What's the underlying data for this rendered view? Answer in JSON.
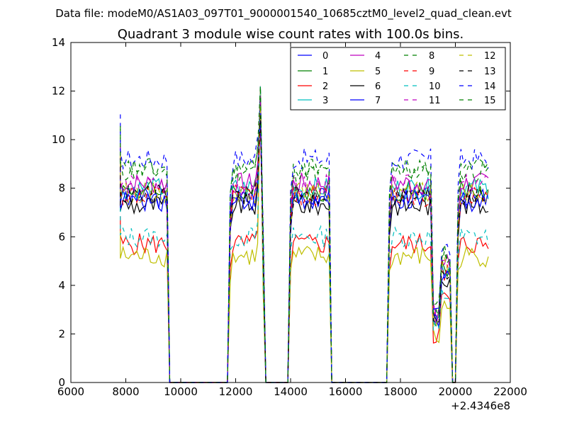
{
  "header": {
    "subtitle": "Data file: modeM0/AS1A03_097T01_9000001540_10685cztM0_level2_quad_clean.evt"
  },
  "chart_data": {
    "type": "line",
    "title": "Quadrant 3 module wise count rates with 100.0s bins.",
    "xlabel": "",
    "ylabel": "",
    "xlim": [
      6000,
      22000
    ],
    "ylim": [
      0,
      14
    ],
    "x_offset_label": "+2.4346e8",
    "x_ticks": [
      "6000",
      "8000",
      "10000",
      "12000",
      "14000",
      "16000",
      "18000",
      "20000",
      "22000"
    ],
    "y_ticks": [
      "0",
      "2",
      "4",
      "6",
      "8",
      "10",
      "12",
      "14"
    ],
    "grid": false,
    "legend_position": "top-right",
    "series": [
      {
        "name": "0",
        "color": "#0000ff",
        "style": "solid",
        "level": 7.6
      },
      {
        "name": "1",
        "color": "#008000",
        "style": "solid",
        "level": 7.9
      },
      {
        "name": "2",
        "color": "#ff0000",
        "style": "solid",
        "level": 5.7
      },
      {
        "name": "3",
        "color": "#00bfbf",
        "style": "solid",
        "level": 8.0
      },
      {
        "name": "4",
        "color": "#bf00bf",
        "style": "solid",
        "level": 8.2
      },
      {
        "name": "5",
        "color": "#bfbf00",
        "style": "solid",
        "level": 5.2
      },
      {
        "name": "6",
        "color": "#000000",
        "style": "solid",
        "level": 7.3
      },
      {
        "name": "7",
        "color": "#0000ff",
        "style": "solid",
        "level": 7.5
      },
      {
        "name": "8",
        "color": "#008000",
        "style": "dashed",
        "level": 8.7
      },
      {
        "name": "9",
        "color": "#ff0000",
        "style": "dashed",
        "level": 7.7
      },
      {
        "name": "10",
        "color": "#00bfbf",
        "style": "dashed",
        "level": 6.0
      },
      {
        "name": "11",
        "color": "#bf00bf",
        "style": "dashed",
        "level": 8.1
      },
      {
        "name": "12",
        "color": "#bfbf00",
        "style": "dashed",
        "level": 7.8
      },
      {
        "name": "13",
        "color": "#000000",
        "style": "dashed",
        "level": 7.7
      },
      {
        "name": "14",
        "color": "#0000ff",
        "style": "dashed",
        "level": 9.2
      },
      {
        "name": "15",
        "color": "#008000",
        "style": "dashed",
        "level": 8.8
      }
    ],
    "segments": [
      {
        "x_start": 7800,
        "x_end": 9500,
        "scale": 1.0
      },
      {
        "x_start": 11800,
        "x_end": 12700,
        "scale": 1.0
      },
      {
        "x_start": 14000,
        "x_end": 15400,
        "scale": 1.0
      },
      {
        "x_start": 17600,
        "x_end": 19100,
        "scale": 1.0
      },
      {
        "x_start": 19200,
        "x_end": 19400,
        "scale": 0.35
      },
      {
        "x_start": 19500,
        "x_end": 19800,
        "scale": 0.6
      },
      {
        "x_start": 20100,
        "x_end": 21200,
        "scale": 1.0
      }
    ],
    "spikes": [
      {
        "x": 12900,
        "value": 12.2
      },
      {
        "x": 20100,
        "value": 10.1
      }
    ]
  }
}
